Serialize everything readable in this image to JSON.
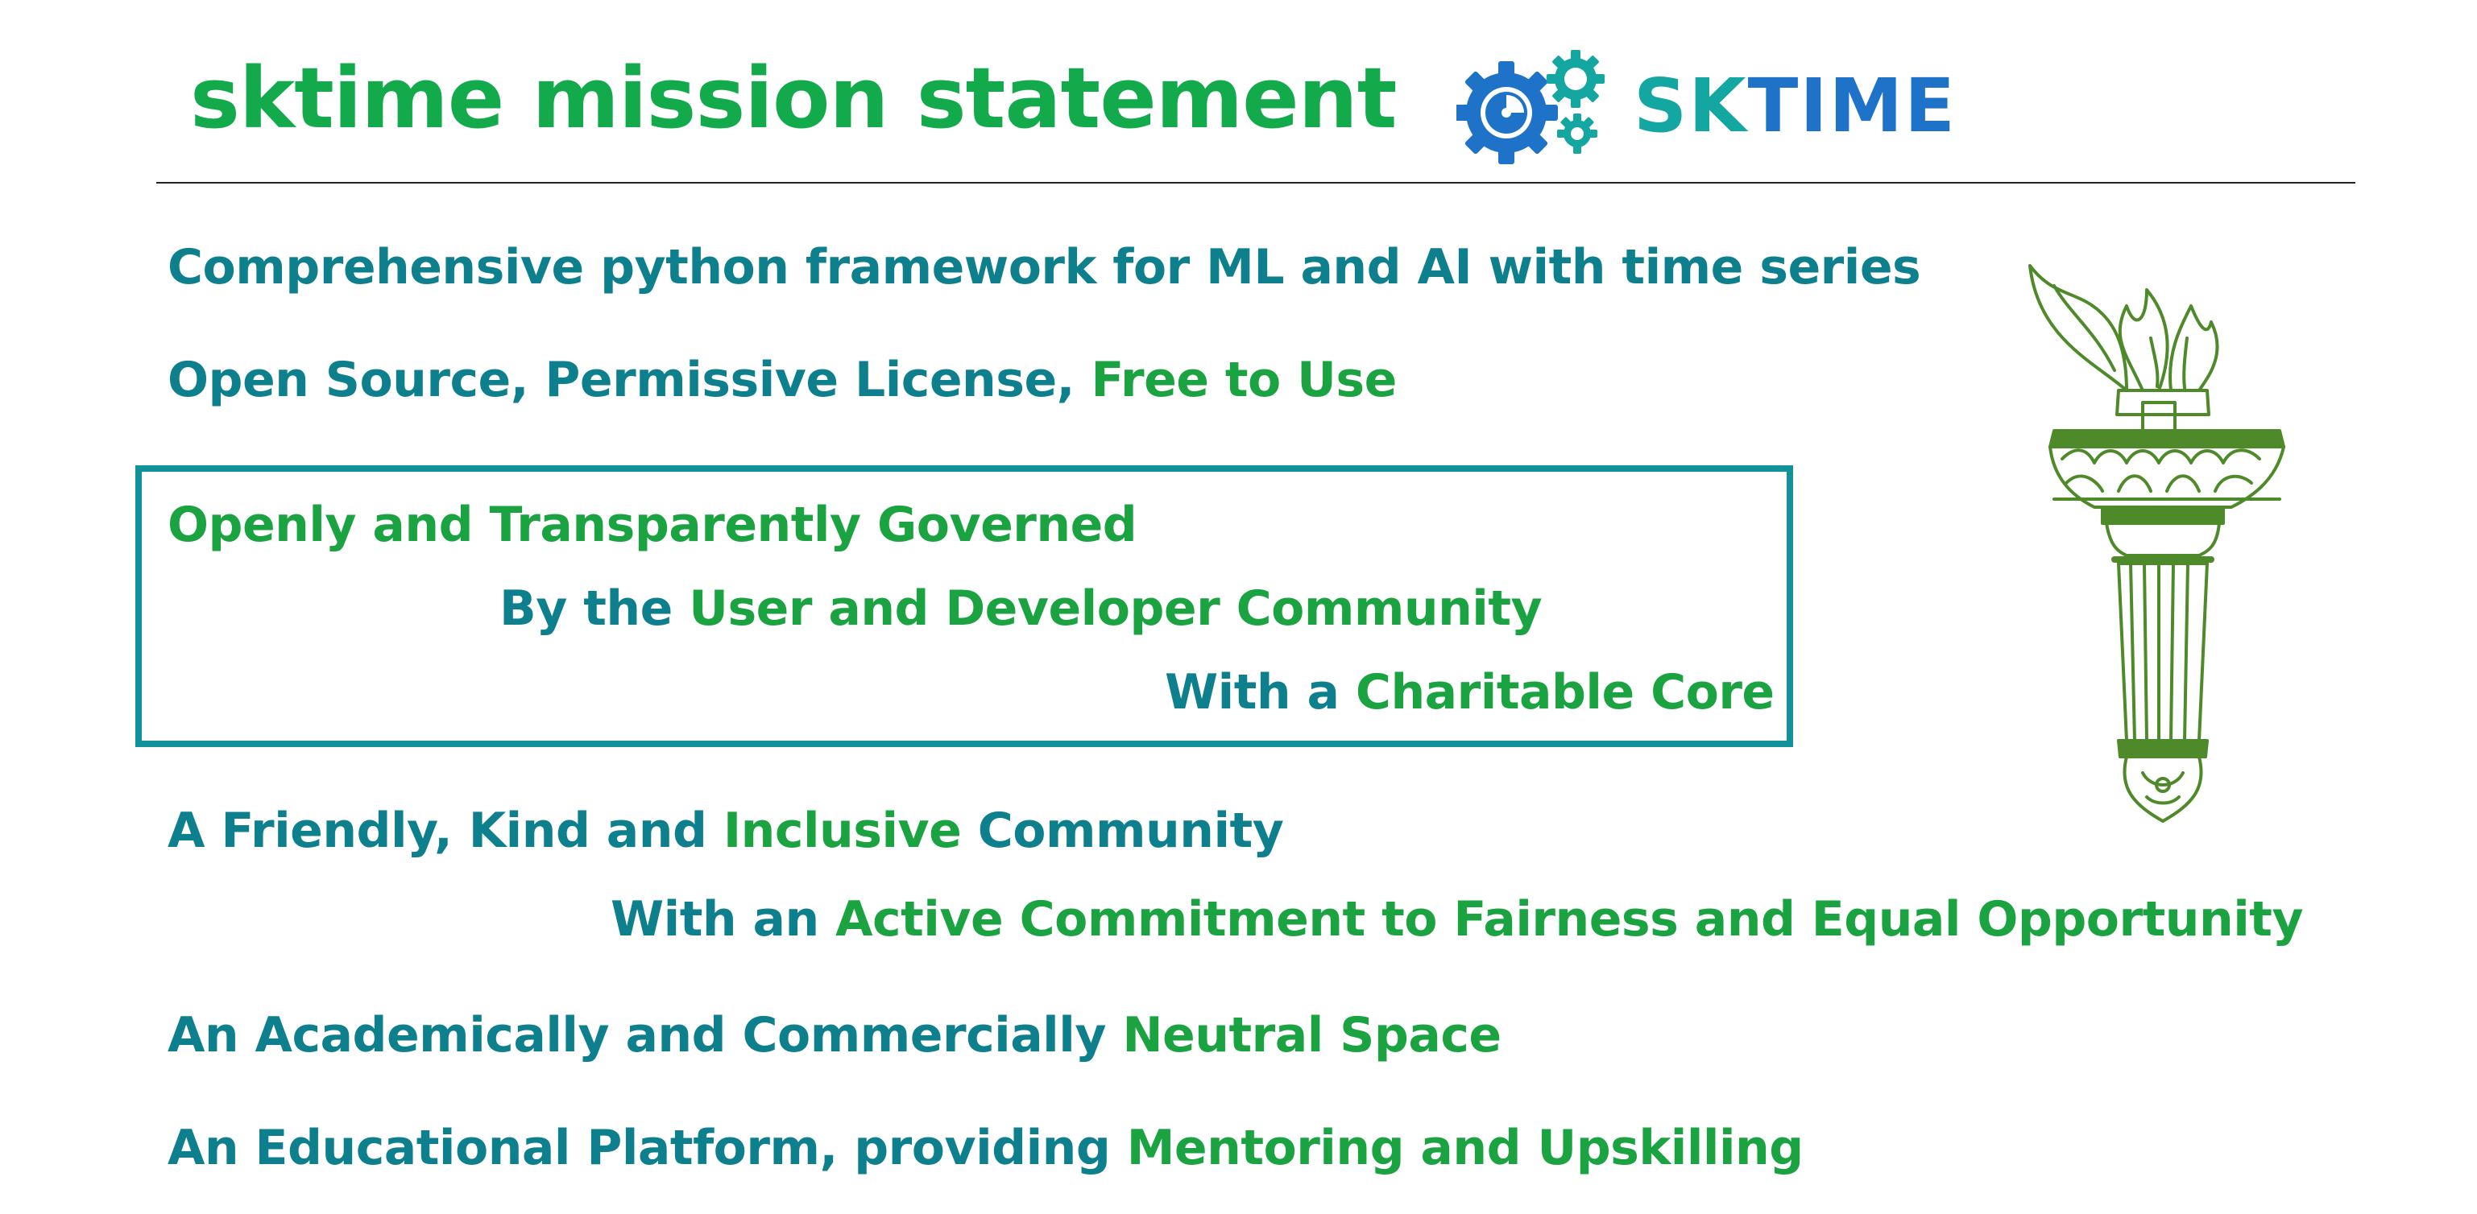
{
  "title": "sktime mission statement",
  "logo": {
    "text_part1": "SK",
    "text_part2": "TIME",
    "icon": "gears-clock-icon"
  },
  "colors": {
    "green": "#1aa340",
    "teal": "#0e7f8c",
    "title_green": "#12aa4b",
    "box_border": "#11919a",
    "logo_teal": "#14a6a0",
    "logo_blue": "#1e73c9"
  },
  "statements": {
    "line1": "Comprehensive python framework for ML and AI with time series",
    "line2_a": "Open Source, Permissive License, ",
    "line2_b": "Free to Use",
    "box_line1": "Openly and Transparently Governed",
    "box_line2_a": "By the ",
    "box_line2_b": "User and Developer Community",
    "box_line3_a": "With a ",
    "box_line3_b": "Charitable Core",
    "line4_a": "A Friendly, Kind and ",
    "line4_b": "Inclusive",
    "line4_c": " Community",
    "line5_a": "With an ",
    "line5_b": "Active Commitment to Fairness and Equal Opportunity",
    "line6_a": "An Academically and Commercially ",
    "line6_b": "Neutral Space",
    "line7_a": "An Educational Platform, providing ",
    "line7_b": "Mentoring and Upskilling"
  },
  "illustration": "torch-icon"
}
